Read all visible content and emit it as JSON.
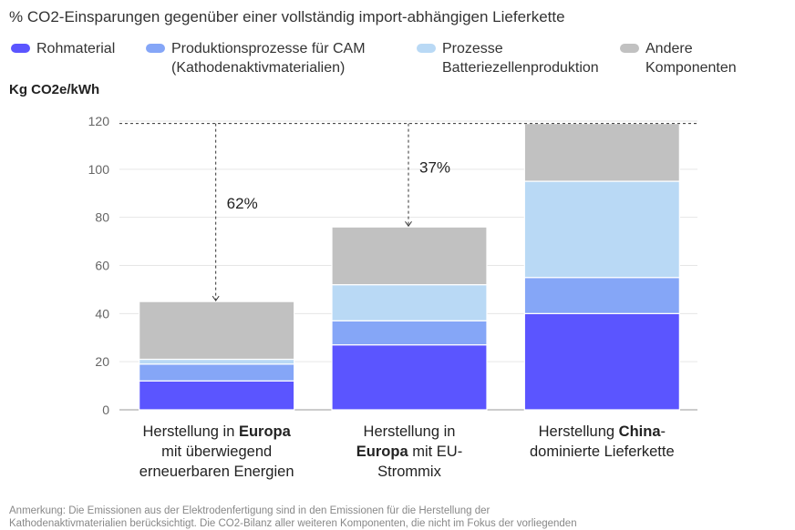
{
  "chart_data": {
    "type": "bar",
    "stacked": true,
    "title": "% CO2-Einsparungen gegenüber einer vollständig import-abhängigen Lieferkette",
    "ylabel": "Kg CO2e/kWh",
    "ylim": [
      0,
      120
    ],
    "yticks": [
      0,
      20,
      40,
      60,
      80,
      100,
      120
    ],
    "grid": true,
    "legend_position": "top",
    "categories": [
      {
        "lines": [
          [
            {
              "t": "Herstellung in ",
              "b": false
            },
            {
              "t": "Europa",
              "b": true
            }
          ],
          [
            {
              "t": "mit überwiegend",
              "b": false
            }
          ],
          [
            {
              "t": "erneuerbaren Energien",
              "b": false
            }
          ]
        ]
      },
      {
        "lines": [
          [
            {
              "t": "Herstellung in",
              "b": false
            }
          ],
          [
            {
              "t": "Europa",
              "b": true
            },
            {
              "t": " mit EU-",
              "b": false
            }
          ],
          [
            {
              "t": "Strommix",
              "b": false
            }
          ]
        ]
      },
      {
        "lines": [
          [
            {
              "t": "Herstellung ",
              "b": false
            },
            {
              "t": "China",
              "b": true
            },
            {
              "t": "-",
              "b": false
            }
          ],
          [
            {
              "t": "dominierte Lieferkette",
              "b": false
            }
          ]
        ]
      }
    ],
    "series": [
      {
        "name": "Rohmaterial",
        "color": "#5b55ff",
        "values": [
          12,
          27,
          40
        ]
      },
      {
        "name_lines": [
          "Produktionsprozesse für CAM",
          "(Kathodenaktivmaterialien)"
        ],
        "color": "#85a6f7",
        "values": [
          7,
          10,
          15
        ]
      },
      {
        "name_lines": [
          "Prozesse",
          "Batteriezellenproduktion"
        ],
        "color": "#b9d9f5",
        "values": [
          2,
          15,
          40
        ]
      },
      {
        "name_lines": [
          "Andere",
          "Komponenten"
        ],
        "color": "#c1c1c1",
        "values": [
          24,
          24,
          24
        ]
      }
    ],
    "reference_line": 119,
    "annotations": [
      {
        "label": "62%",
        "category_index": 0
      },
      {
        "label": "37%",
        "category_index": 1
      }
    ]
  },
  "note": {
    "line1": "Anmerkung: Die Emissionen aus der Elektrodenfertigung sind in den Emissionen für die Herstellung der",
    "line2": "Kathodenaktivmaterialien berücksichtigt. Die CO2-Bilanz aller weiteren Komponenten, die nicht im Fokus der vorliegenden"
  }
}
